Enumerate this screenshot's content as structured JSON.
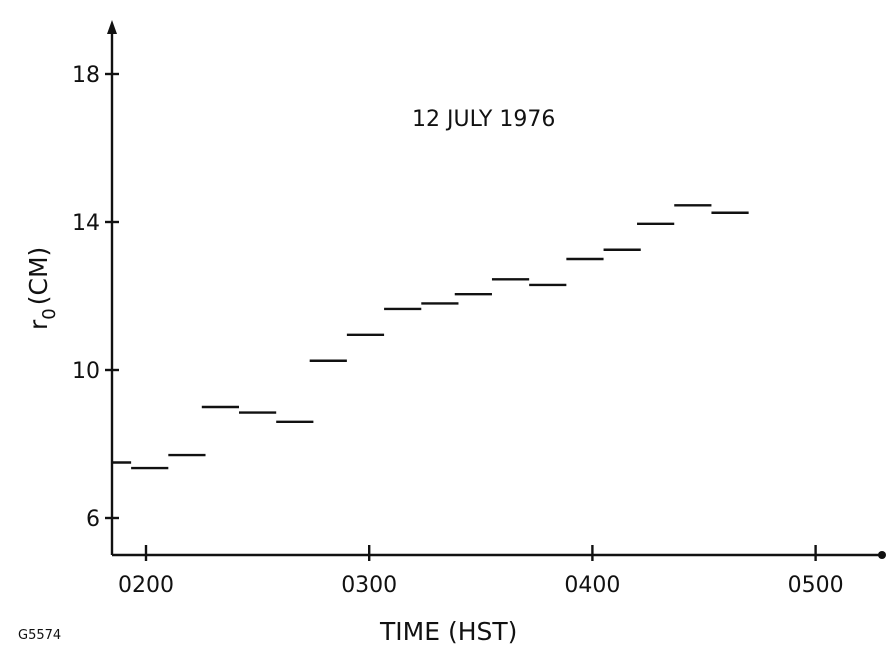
{
  "chart_data": {
    "type": "scatter",
    "title": "",
    "annotation": "12 JULY 1976",
    "xlabel": "TIME (HST)",
    "ylabel": "r",
    "ylabel_subscript": "0",
    "ylabel_unit": "(CM)",
    "figure_id": "G5574",
    "x_unit": "minutes past 0000 HST",
    "xlim": [
      105,
      320
    ],
    "ylim": [
      5,
      20
    ],
    "x_ticks": [
      120,
      180,
      240,
      300
    ],
    "x_tick_labels": [
      "0200",
      "0300",
      "0400",
      "0500"
    ],
    "y_ticks": [
      6,
      10,
      14,
      18
    ],
    "y_tick_labels": [
      "6",
      "10",
      "14",
      "18"
    ],
    "grid": false,
    "legend": "none",
    "series": [
      {
        "points": [
          {
            "x_start": 105,
            "x_end": 116,
            "y": 7.5
          },
          {
            "x_start": 116,
            "x_end": 126,
            "y": 7.35
          },
          {
            "x_start": 126,
            "x_end": 136,
            "y": 7.7
          },
          {
            "x_start": 135,
            "x_end": 145,
            "y": 9.0
          },
          {
            "x_start": 145,
            "x_end": 155,
            "y": 8.85
          },
          {
            "x_start": 155,
            "x_end": 165,
            "y": 8.6
          },
          {
            "x_start": 164,
            "x_end": 174,
            "y": 10.25
          },
          {
            "x_start": 174,
            "x_end": 184,
            "y": 10.95
          },
          {
            "x_start": 184,
            "x_end": 194,
            "y": 11.65
          },
          {
            "x_start": 194,
            "x_end": 204,
            "y": 11.8
          },
          {
            "x_start": 203,
            "x_end": 213,
            "y": 12.05
          },
          {
            "x_start": 213,
            "x_end": 223,
            "y": 12.45
          },
          {
            "x_start": 223,
            "x_end": 233,
            "y": 12.3
          },
          {
            "x_start": 233,
            "x_end": 243,
            "y": 13.0
          },
          {
            "x_start": 243,
            "x_end": 253,
            "y": 13.25
          },
          {
            "x_start": 252,
            "x_end": 262,
            "y": 13.95
          },
          {
            "x_start": 262,
            "x_end": 272,
            "y": 14.45
          },
          {
            "x_start": 272,
            "x_end": 282,
            "y": 14.25
          }
        ]
      }
    ]
  },
  "colors": {
    "ink": "#111111",
    "background": "#ffffff"
  }
}
